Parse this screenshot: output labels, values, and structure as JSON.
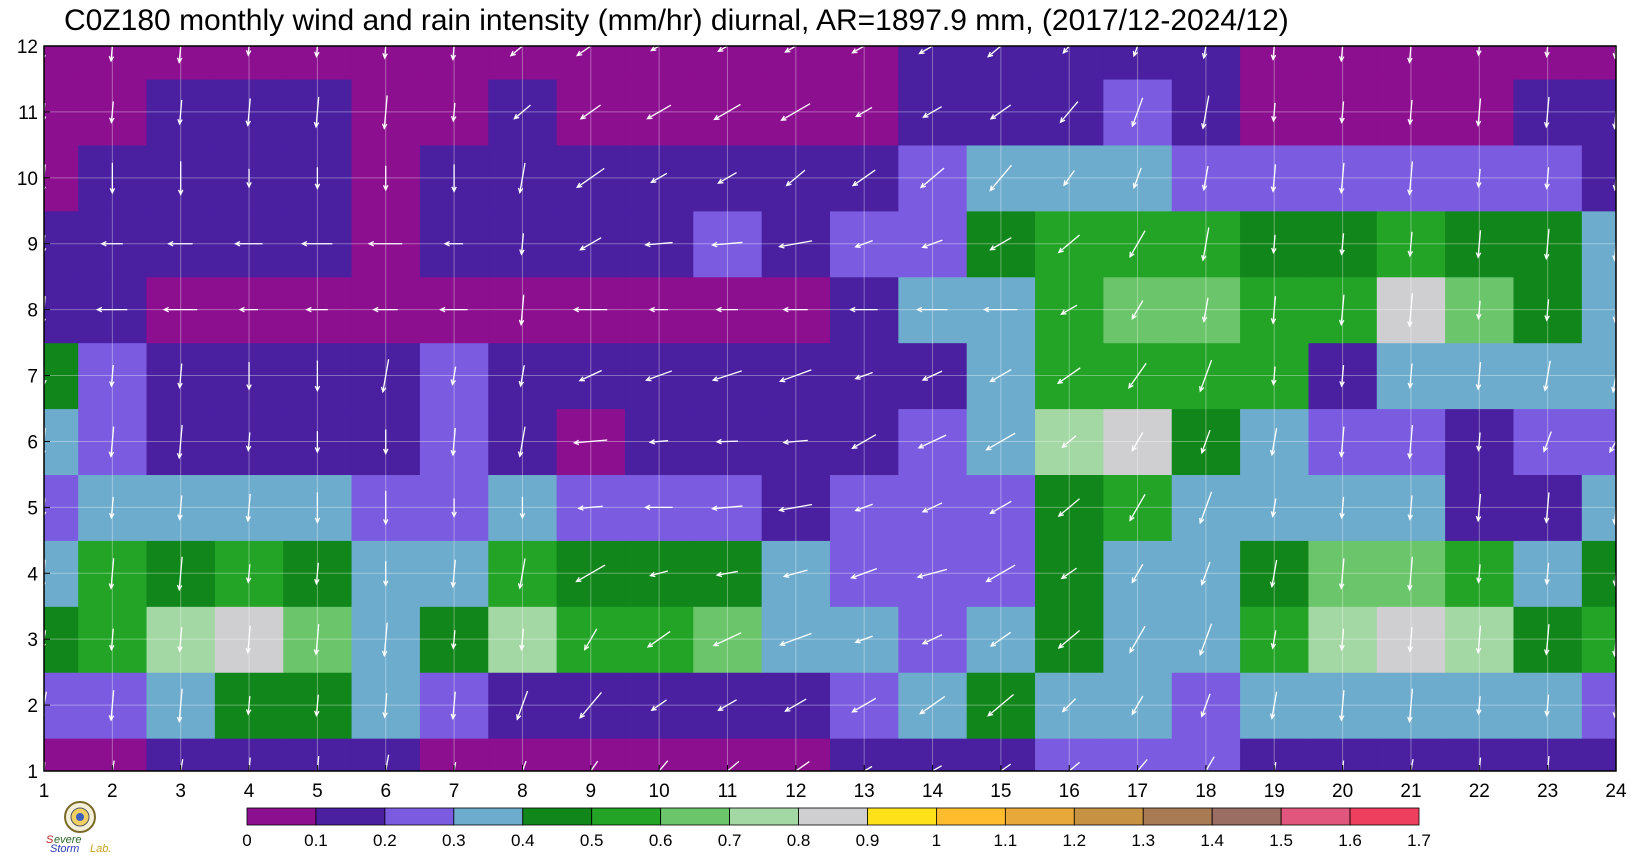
{
  "title": "C0Z180 monthly wind and rain intensity (mm/hr) diurnal, AR=1897.9 mm, (2017/12-2024/12)",
  "chart_data": {
    "type": "heatmap",
    "title": "C0Z180 monthly wind and rain intensity (mm/hr) diurnal, AR=1897.9 mm, (2017/12-2024/12)",
    "x_ticks": [
      1,
      2,
      3,
      4,
      5,
      6,
      7,
      8,
      9,
      10,
      11,
      12,
      13,
      14,
      15,
      16,
      17,
      18,
      19,
      20,
      21,
      22,
      23,
      24
    ],
    "y_ticks": [
      1,
      2,
      3,
      4,
      5,
      6,
      7,
      8,
      9,
      10,
      11,
      12
    ],
    "xlim": [
      1,
      24
    ],
    "ylim": [
      1,
      12
    ],
    "grid": true,
    "colorbar": {
      "levels": [
        "0",
        "0.1",
        "0.2",
        "0.3",
        "0.4",
        "0.5",
        "0.6",
        "0.7",
        "0.8",
        "0.9",
        "1",
        "1.1",
        "1.2",
        "1.3",
        "1.4",
        "1.5",
        "1.6",
        "1.7"
      ],
      "colors": [
        "#8c0f8f",
        "#4a1fa0",
        "#7b5ce0",
        "#6eaccd",
        "#11861a",
        "#23a427",
        "#6bc66b",
        "#a3d7a3",
        "#cfcfd2",
        "#ffe11a",
        "#ffbd2e",
        "#e9a83a",
        "#c79342",
        "#a97b55",
        "#9a6e62",
        "#e0567c",
        "#ef3f5e",
        "#d32b3c"
      ]
    },
    "rain_grid": [
      [
        0.05,
        0.06,
        0.1,
        0.13,
        0.12,
        0.1,
        0.08,
        0.09,
        0.07,
        0.06,
        0.07,
        0.09,
        0.11,
        0.15,
        0.18,
        0.22,
        0.25,
        0.2,
        0.12,
        0.1,
        0.12,
        0.15,
        0.18,
        0.1
      ],
      [
        0.2,
        0.28,
        0.35,
        0.42,
        0.45,
        0.35,
        0.25,
        0.18,
        0.15,
        0.16,
        0.17,
        0.18,
        0.28,
        0.36,
        0.4,
        0.35,
        0.3,
        0.26,
        0.3,
        0.34,
        0.35,
        0.3,
        0.3,
        0.28
      ],
      [
        0.45,
        0.58,
        0.72,
        0.82,
        0.6,
        0.33,
        0.42,
        0.75,
        0.52,
        0.58,
        0.62,
        0.38,
        0.3,
        0.28,
        0.32,
        0.46,
        0.38,
        0.34,
        0.5,
        0.72,
        0.86,
        0.74,
        0.46,
        0.55
      ],
      [
        0.38,
        0.52,
        0.48,
        0.5,
        0.48,
        0.32,
        0.36,
        0.5,
        0.4,
        0.42,
        0.43,
        0.3,
        0.27,
        0.25,
        0.26,
        0.42,
        0.34,
        0.33,
        0.44,
        0.6,
        0.66,
        0.55,
        0.35,
        0.42
      ],
      [
        0.28,
        0.34,
        0.3,
        0.32,
        0.3,
        0.25,
        0.26,
        0.3,
        0.22,
        0.23,
        0.24,
        0.18,
        0.22,
        0.24,
        0.24,
        0.46,
        0.5,
        0.35,
        0.34,
        0.36,
        0.3,
        0.18,
        0.15,
        0.3
      ],
      [
        0.32,
        0.22,
        0.18,
        0.16,
        0.16,
        0.15,
        0.22,
        0.18,
        0.08,
        0.14,
        0.17,
        0.1,
        0.17,
        0.2,
        0.34,
        0.72,
        0.8,
        0.45,
        0.38,
        0.28,
        0.22,
        0.15,
        0.2,
        0.28
      ],
      [
        0.4,
        0.22,
        0.16,
        0.15,
        0.15,
        0.11,
        0.2,
        0.15,
        0.12,
        0.14,
        0.15,
        0.14,
        0.16,
        0.18,
        0.32,
        0.52,
        0.58,
        0.52,
        0.5,
        0.14,
        0.3,
        0.32,
        0.38,
        0.3
      ],
      [
        0.18,
        0.12,
        0.09,
        0.07,
        0.06,
        0.05,
        0.09,
        0.08,
        0.09,
        0.08,
        0.07,
        0.09,
        0.18,
        0.3,
        0.38,
        0.52,
        0.68,
        0.6,
        0.55,
        0.55,
        0.82,
        0.62,
        0.48,
        0.3
      ],
      [
        0.1,
        0.16,
        0.12,
        0.1,
        0.1,
        0.09,
        0.13,
        0.12,
        0.14,
        0.16,
        0.24,
        0.13,
        0.25,
        0.28,
        0.4,
        0.52,
        0.55,
        0.54,
        0.48,
        0.48,
        0.5,
        0.45,
        0.4,
        0.35
      ],
      [
        0.08,
        0.13,
        0.15,
        0.17,
        0.12,
        0.09,
        0.12,
        0.14,
        0.14,
        0.11,
        0.1,
        0.1,
        0.14,
        0.22,
        0.3,
        0.34,
        0.3,
        0.28,
        0.28,
        0.28,
        0.28,
        0.25,
        0.22,
        0.14
      ],
      [
        0.07,
        0.05,
        0.11,
        0.12,
        0.1,
        0.06,
        0.09,
        0.1,
        0.09,
        0.08,
        0.07,
        0.07,
        0.09,
        0.11,
        0.13,
        0.18,
        0.22,
        0.16,
        0.09,
        0.08,
        0.09,
        0.07,
        0.13,
        0.15
      ],
      [
        0.04,
        0.05,
        0.08,
        0.06,
        0.05,
        0.05,
        0.04,
        0.04,
        0.05,
        0.06,
        0.07,
        0.06,
        0.08,
        0.11,
        0.12,
        0.13,
        0.14,
        0.12,
        0.08,
        0.07,
        0.09,
        0.08,
        0.06,
        0.05
      ]
    ],
    "wind_direction_deg_from_east": [
      [
        -95,
        -100,
        -100,
        -95,
        -95,
        -100,
        -100,
        -110,
        -125,
        -130,
        -140,
        -145,
        -150,
        -150,
        -145,
        -140,
        -130,
        -120,
        -100,
        -95,
        -100,
        -95,
        -95,
        -95
      ],
      [
        -100,
        -95,
        -95,
        -95,
        -95,
        -95,
        -95,
        -110,
        -130,
        -145,
        -150,
        -150,
        -150,
        -145,
        -140,
        -135,
        -120,
        -110,
        -100,
        -95,
        -95,
        -95,
        -95,
        -95
      ],
      [
        -100,
        -95,
        -95,
        -95,
        -95,
        -95,
        -95,
        -95,
        -120,
        -145,
        -155,
        -160,
        -160,
        -155,
        -145,
        -140,
        -120,
        -110,
        -100,
        -95,
        -95,
        -95,
        -95,
        -95
      ],
      [
        -95,
        -95,
        -95,
        -95,
        -95,
        -90,
        -95,
        -100,
        -150,
        -165,
        -170,
        -165,
        -160,
        -165,
        -150,
        -145,
        -120,
        -110,
        -100,
        -95,
        -95,
        -95,
        -95,
        -95
      ],
      [
        -95,
        -95,
        -95,
        -95,
        -90,
        -90,
        -90,
        -90,
        -175,
        -180,
        -175,
        -170,
        -160,
        -155,
        -150,
        -140,
        -120,
        -110,
        -100,
        -95,
        -95,
        -95,
        -95,
        -95
      ],
      [
        -95,
        -95,
        -95,
        -95,
        -90,
        -90,
        -95,
        -100,
        -175,
        -175,
        -178,
        -175,
        -150,
        -155,
        -150,
        -140,
        -120,
        -110,
        -100,
        -95,
        -95,
        -95,
        -110,
        -120
      ],
      [
        -90,
        -95,
        -95,
        -90,
        -90,
        -100,
        -100,
        -100,
        -155,
        -160,
        -162,
        -160,
        -160,
        -155,
        -150,
        -145,
        -125,
        -110,
        -95,
        -95,
        -95,
        -95,
        -100,
        -100
      ],
      [
        -95,
        -180,
        -180,
        -180,
        -180,
        -180,
        -180,
        -95,
        -180,
        -180,
        -180,
        -180,
        -180,
        -180,
        -180,
        -150,
        -120,
        -100,
        -95,
        -95,
        -95,
        -95,
        -95,
        -95
      ],
      [
        -95,
        -180,
        -180,
        -180,
        -180,
        -180,
        -180,
        -95,
        -150,
        -175,
        -175,
        -170,
        -160,
        -160,
        -150,
        -140,
        -120,
        -100,
        -95,
        -95,
        -95,
        -95,
        -95,
        -95
      ],
      [
        -95,
        -90,
        -90,
        -90,
        -90,
        -90,
        -90,
        -100,
        -145,
        -150,
        -150,
        -140,
        -145,
        -140,
        -130,
        -125,
        -110,
        -100,
        -95,
        -95,
        -95,
        -95,
        -95,
        -95
      ],
      [
        -95,
        -95,
        -95,
        -95,
        -95,
        -95,
        -95,
        -140,
        -145,
        -150,
        -150,
        -150,
        -150,
        -150,
        -145,
        -130,
        -110,
        -100,
        -95,
        -95,
        -95,
        -95,
        -95,
        -95
      ],
      [
        -95,
        -95,
        -95,
        -95,
        -95,
        -95,
        -95,
        -140,
        -145,
        -150,
        -150,
        -150,
        -150,
        -150,
        -140,
        -130,
        -110,
        -100,
        -95,
        -95,
        -95,
        -95,
        -95,
        -95
      ]
    ]
  }
}
